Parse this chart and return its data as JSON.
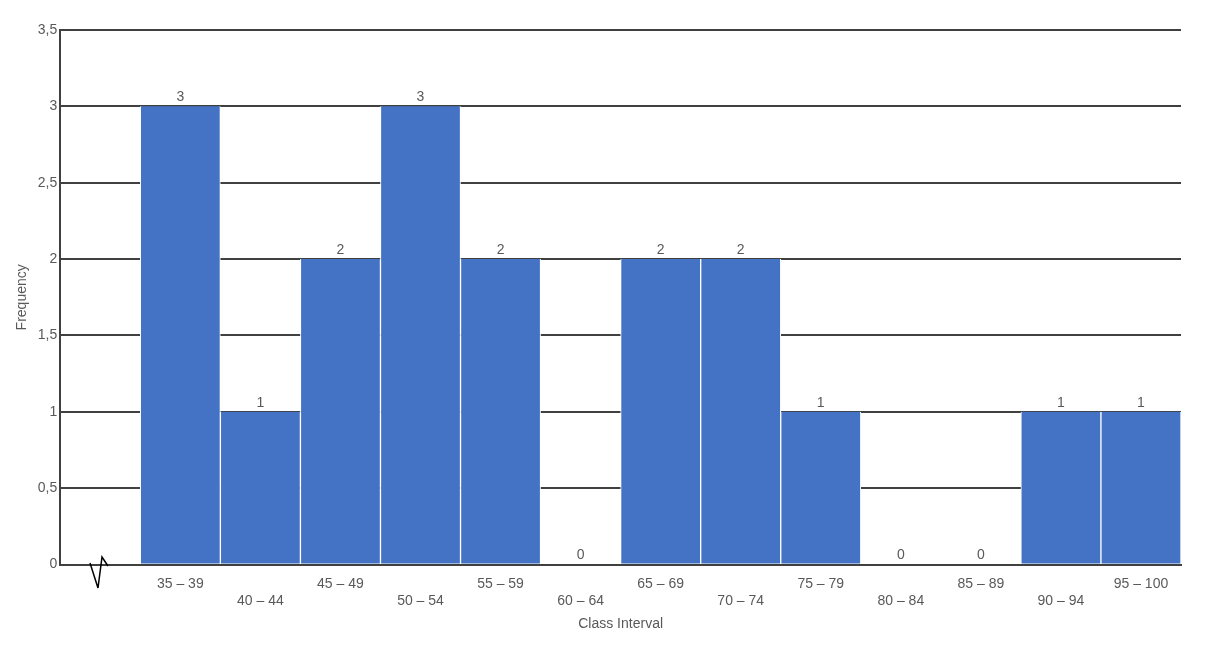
{
  "chart_data": {
    "type": "bar",
    "xlabel": "Class Interval",
    "ylabel": "Frequency",
    "categories": [
      null,
      "35 – 39",
      "40 – 44",
      "45 – 49",
      "50 – 54",
      "55 – 59",
      "60 – 64",
      "65 – 69",
      "70 – 74",
      "75 – 79",
      "80 – 84",
      "85 – 89",
      "90 – 94",
      "95 – 100"
    ],
    "values": [
      null,
      3,
      1,
      2,
      3,
      2,
      0,
      2,
      2,
      1,
      0,
      0,
      1,
      1
    ],
    "color": "#4472c4",
    "data_labels": true,
    "grid": "y",
    "legend": false,
    "ylim": [
      0,
      3.5
    ],
    "yticks": [
      {
        "value": 0,
        "label": "0"
      },
      {
        "value": 0.5,
        "label": "0,5"
      },
      {
        "value": 1,
        "label": "1"
      },
      {
        "value": 1.5,
        "label": "1,5"
      },
      {
        "value": 2,
        "label": "2"
      },
      {
        "value": 2.5,
        "label": "2,5"
      },
      {
        "value": 3,
        "label": "3"
      },
      {
        "value": 3.5,
        "label": "3,5"
      }
    ]
  }
}
